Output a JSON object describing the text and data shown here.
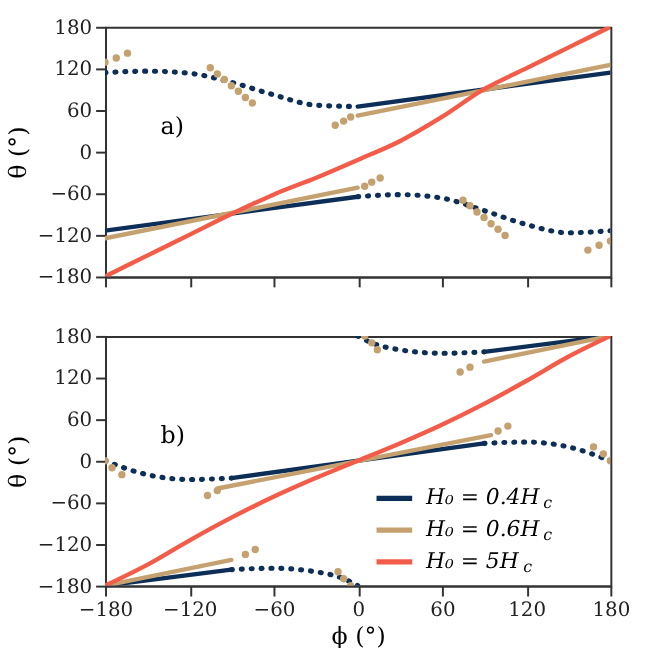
{
  "chart_data": [
    {
      "type": "line",
      "annotations": [
        "a)"
      ],
      "ylabel": "θ (°)",
      "xlim": [
        -180,
        180
      ],
      "ylim": [
        -180,
        180
      ],
      "xticks": [
        -180,
        -120,
        -60,
        0,
        60,
        120,
        180
      ],
      "yticks": [
        -180,
        -120,
        -60,
        0,
        60,
        120,
        180
      ],
      "tick_labels": "y",
      "grid": false,
      "legend": false,
      "series": [
        {
          "color": "#0d2e57",
          "line_style": "solid",
          "x": [
            -180,
            0
          ],
          "values": [
            -114,
            -65
          ]
        },
        {
          "color": "#0d2e57",
          "line_style": "solid",
          "x": [
            0,
            180
          ],
          "values": [
            65,
            114
          ]
        },
        {
          "color": "#0d2e57",
          "line_style": "dotted",
          "x": [
            -180,
            -150,
            -120,
            -90,
            -60,
            -30,
            0
          ],
          "values": [
            114,
            116,
            113,
            100,
            82,
            67,
            65
          ]
        },
        {
          "color": "#0d2e57",
          "line_style": "dotted",
          "x": [
            0,
            30,
            60,
            90,
            120,
            150,
            180
          ],
          "values": [
            -65,
            -62,
            -67,
            -85,
            -105,
            -117,
            -114
          ]
        },
        {
          "color": "#c4a16e",
          "line_style": "solid",
          "x": [
            -180,
            0
          ],
          "values": [
            -125,
            -52
          ]
        },
        {
          "color": "#c4a16e",
          "line_style": "solid",
          "x": [
            0,
            180
          ],
          "values": [
            52,
            125
          ]
        },
        {
          "type": "scatter",
          "marker": "circle",
          "color": "#c4a16e",
          "x": [
            -180,
            -172,
            -164,
            -105,
            -100,
            -95,
            -90,
            -85,
            -80,
            -75,
            -16,
            -10,
            -5,
            5,
            10,
            16,
            75,
            80,
            85,
            90,
            95,
            100,
            105,
            164,
            172,
            180
          ],
          "values": [
            129,
            135,
            142,
            121,
            112,
            104,
            95,
            87,
            78,
            70,
            38,
            44,
            50,
            -50,
            -44,
            -38,
            -70,
            -78,
            -87,
            -95,
            -104,
            -112,
            -121,
            -142,
            -135,
            -129
          ]
        },
        {
          "color": "#f45c4a",
          "line_style": "solid",
          "x": [
            -180,
            -150,
            -120,
            -90,
            -60,
            -30,
            0,
            30,
            60,
            90,
            120,
            150,
            180
          ],
          "values": [
            -180,
            -150,
            -120,
            -90,
            -62,
            -38,
            -12,
            15,
            50,
            90,
            120,
            150,
            180
          ]
        }
      ]
    },
    {
      "type": "line",
      "annotations": [
        "b)"
      ],
      "xlabel": "ϕ (°)",
      "ylabel": "θ (°)",
      "xlim": [
        -180,
        180
      ],
      "ylim": [
        -180,
        180
      ],
      "xticks": [
        -180,
        -120,
        -60,
        0,
        60,
        120,
        180
      ],
      "yticks": [
        -180,
        -120,
        -60,
        0,
        60,
        120,
        180
      ],
      "grid": false,
      "legend": "bottom right",
      "series": [
        {
          "name": "H₀ = 0.4H$_{c}$",
          "color": "#0d2e57",
          "line_style": "solid",
          "x": [
            -90,
            90
          ],
          "values": [
            -25,
            25
          ]
        },
        {
          "color": "#0d2e57",
          "line_style": "solid",
          "x": [
            90,
            180
          ],
          "values": [
            157,
            180
          ]
        },
        {
          "color": "#0d2e57",
          "line_style": "solid",
          "x": [
            -180,
            -90
          ],
          "values": [
            -180,
            -157
          ]
        },
        {
          "color": "#0d2e57",
          "line_style": "dotted",
          "x": [
            -180,
            -150,
            -120,
            -90
          ],
          "values": [
            0,
            -20,
            -27,
            -25
          ]
        },
        {
          "color": "#0d2e57",
          "line_style": "dotted",
          "x": [
            90,
            120,
            150,
            180
          ],
          "values": [
            25,
            27,
            20,
            0
          ]
        },
        {
          "color": "#0d2e57",
          "line_style": "dotted",
          "x": [
            0,
            10,
            30,
            60,
            90
          ],
          "values": [
            180,
            170,
            160,
            155,
            157
          ]
        },
        {
          "color": "#0d2e57",
          "line_style": "dotted",
          "x": [
            -90,
            -60,
            -30,
            -10,
            0
          ],
          "values": [
            -157,
            -155,
            -160,
            -170,
            -180
          ]
        },
        {
          "name": "H₀ = 0.6H$_{c}$",
          "color": "#c4a16e",
          "line_style": "solid",
          "x": [
            -100,
            95
          ],
          "values": [
            -40,
            37
          ]
        },
        {
          "color": "#c4a16e",
          "line_style": "solid",
          "x": [
            90,
            180
          ],
          "values": [
            143,
            180
          ]
        },
        {
          "color": "#c4a16e",
          "line_style": "solid",
          "x": [
            -180,
            -90
          ],
          "values": [
            -180,
            -143
          ]
        },
        {
          "type": "scatter",
          "marker": "circle",
          "color": "#c4a16e",
          "x": [
            -107,
            -100,
            100,
            107,
            73,
            80,
            -80,
            -73,
            -180,
            -175,
            -168,
            168,
            175,
            180,
            5,
            10,
            14,
            -14,
            -10,
            -5
          ],
          "values": [
            -50,
            -43,
            43,
            50,
            128,
            135,
            -135,
            -128,
            0,
            -10,
            -20,
            20,
            10,
            0,
            180,
            170,
            160,
            -160,
            -170,
            -180
          ]
        },
        {
          "name": "H₀ = 5H$_{c}$",
          "color": "#f45c4a",
          "line_style": "solid",
          "x": [
            -180,
            -150,
            -120,
            -90,
            -60,
            -30,
            0,
            30,
            60,
            90,
            120,
            150,
            180
          ],
          "values": [
            -180,
            -150,
            -115,
            -82,
            -52,
            -25,
            0,
            25,
            52,
            82,
            115,
            150,
            180
          ]
        }
      ]
    }
  ]
}
